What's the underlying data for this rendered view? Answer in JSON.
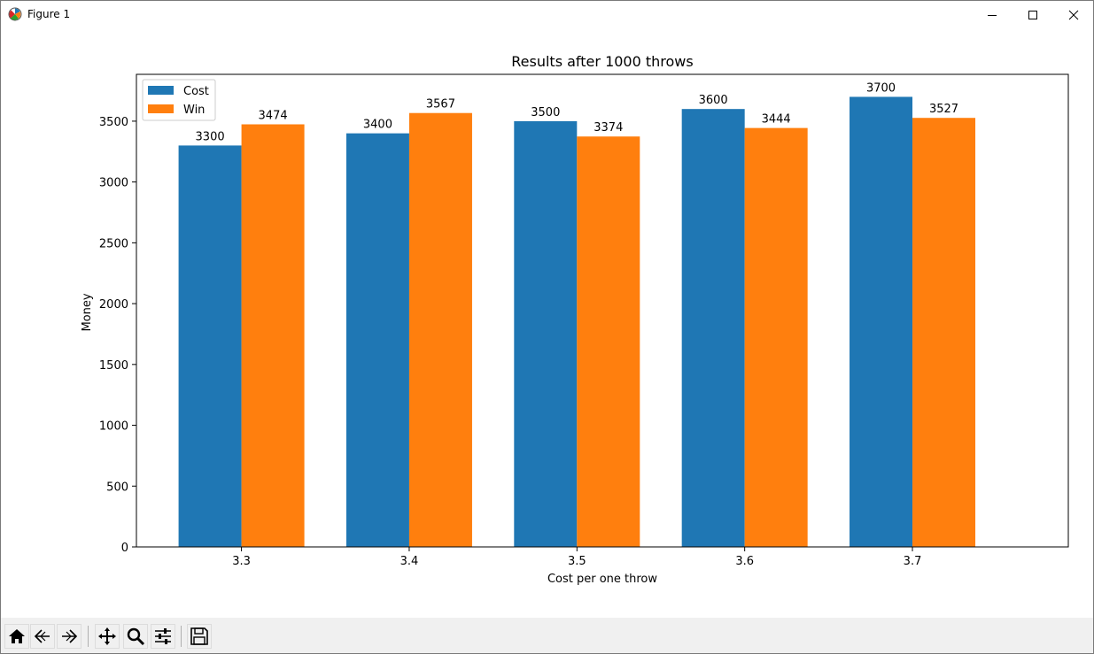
{
  "window": {
    "title": "Figure 1"
  },
  "toolbar": {
    "buttons": [
      {
        "name": "home-icon"
      },
      {
        "name": "back-icon"
      },
      {
        "name": "forward-icon"
      },
      {
        "name": "pan-icon"
      },
      {
        "name": "zoom-icon"
      },
      {
        "name": "configure-subplots-icon"
      },
      {
        "name": "save-icon"
      }
    ]
  },
  "chart_data": {
    "type": "bar",
    "title": "Results after 1000 throws",
    "xlabel": "Cost per one throw",
    "ylabel": "Money",
    "categories": [
      "3.3",
      "3.4",
      "3.5",
      "3.6",
      "3.7"
    ],
    "series": [
      {
        "name": "Cost",
        "color": "#1f77b4",
        "values": [
          3300,
          3400,
          3500,
          3600,
          3700
        ]
      },
      {
        "name": "Win",
        "color": "#ff7f0e",
        "values": [
          3474,
          3567,
          3374,
          3444,
          3527
        ]
      }
    ],
    "yticks": [
      0,
      500,
      1000,
      1500,
      2000,
      2500,
      3000,
      3500
    ],
    "ylim": [
      0,
      3885
    ],
    "legend": "top-left",
    "grid": false
  }
}
